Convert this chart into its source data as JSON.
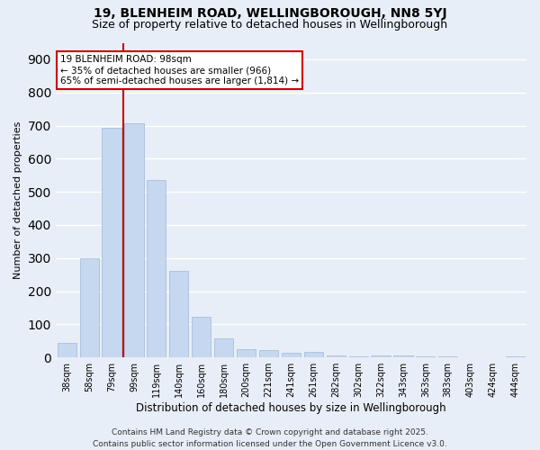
{
  "title_line1": "19, BLENHEIM ROAD, WELLINGBOROUGH, NN8 5YJ",
  "title_line2": "Size of property relative to detached houses in Wellingborough",
  "xlabel": "Distribution of detached houses by size in Wellingborough",
  "ylabel": "Number of detached properties",
  "categories": [
    "38sqm",
    "58sqm",
    "79sqm",
    "99sqm",
    "119sqm",
    "140sqm",
    "160sqm",
    "180sqm",
    "200sqm",
    "221sqm",
    "241sqm",
    "261sqm",
    "282sqm",
    "302sqm",
    "322sqm",
    "343sqm",
    "363sqm",
    "383sqm",
    "403sqm",
    "424sqm",
    "444sqm"
  ],
  "values": [
    43,
    300,
    693,
    707,
    537,
    260,
    122,
    57,
    25,
    22,
    15,
    17,
    7,
    4,
    7,
    5,
    2,
    2,
    1,
    0,
    4
  ],
  "bar_color": "#c5d8ef",
  "bar_edgecolor": "#a0b8d8",
  "vline_color": "#cc0000",
  "vline_position": 3.5,
  "annotation_text": "19 BLENHEIM ROAD: 98sqm\n← 35% of detached houses are smaller (966)\n65% of semi-detached houses are larger (1,814) →",
  "annotation_box_color": "#ffffff",
  "annotation_box_edgecolor": "#cc0000",
  "ylim": [
    0,
    950
  ],
  "yticks": [
    0,
    100,
    200,
    300,
    400,
    500,
    600,
    700,
    800,
    900
  ],
  "background_color": "#e8eef7",
  "grid_color": "#ffffff",
  "footer_line1": "Contains HM Land Registry data © Crown copyright and database right 2025.",
  "footer_line2": "Contains public sector information licensed under the Open Government Licence v3.0.",
  "title_fontsize": 10,
  "subtitle_fontsize": 9,
  "axis_label_fontsize": 8.5,
  "tick_fontsize": 7,
  "annotation_fontsize": 7.5,
  "footer_fontsize": 6.5,
  "ylabel_fontsize": 8
}
